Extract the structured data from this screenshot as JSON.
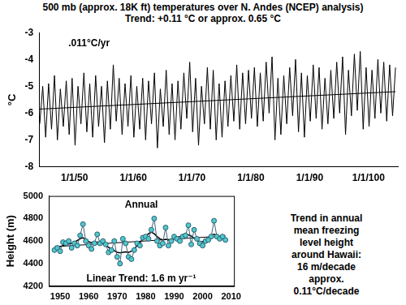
{
  "chart_data": [
    {
      "type": "line",
      "title": "500 mb (approx. 18K ft) temperatures over N. Andes (NCEP) analysis)",
      "subtitle": "Trend:  +0.11 °C or approx. 0.65 °C",
      "annotations": [
        ".011°C/yr"
      ],
      "y_label": "°C",
      "xlim": [
        1944,
        2005
      ],
      "xticks": [
        {
          "value": 1950,
          "label": "1/1/50"
        },
        {
          "value": 1960,
          "label": "1/1/60"
        },
        {
          "value": 1970,
          "label": "1/1/70"
        },
        {
          "value": 1980,
          "label": "1/1/80"
        },
        {
          "value": 1990,
          "label": "1/1/90"
        },
        {
          "value": 2000,
          "label": "1/1/100"
        }
      ],
      "ylim": [
        -8,
        -3
      ],
      "yticks": [
        -8,
        -7,
        -6,
        -5,
        -4,
        -3
      ],
      "grid": false,
      "series": [
        {
          "color": "#000000",
          "marker": "none",
          "line_style": "solid",
          "x": [
            1944.1,
            1944.6,
            1945.1,
            1945.6,
            1946.1,
            1946.6,
            1947.1,
            1947.6,
            1948.1,
            1948.6,
            1949.1,
            1949.6,
            1950.1,
            1950.6,
            1951.1,
            1951.6,
            1952.1,
            1952.6,
            1953.1,
            1953.6,
            1954.1,
            1954.6,
            1955.1,
            1955.6,
            1956.1,
            1956.6,
            1957.1,
            1957.6,
            1958.1,
            1958.6,
            1959.1,
            1959.6,
            1960.1,
            1960.6,
            1961.1,
            1961.6,
            1962.1,
            1962.6,
            1963.1,
            1963.6,
            1964.1,
            1964.6,
            1965.1,
            1965.6,
            1966.1,
            1966.6,
            1967.1,
            1967.6,
            1968.1,
            1968.6,
            1969.1,
            1969.6,
            1970.1,
            1970.6,
            1971.1,
            1971.6,
            1972.1,
            1972.6,
            1973.1,
            1973.6,
            1974.1,
            1974.6,
            1975.1,
            1975.6,
            1976.1,
            1976.6,
            1977.1,
            1977.6,
            1978.1,
            1978.6,
            1979.1,
            1979.6,
            1980.1,
            1980.6,
            1981.1,
            1981.6,
            1982.1,
            1982.6,
            1983.1,
            1983.6,
            1984.1,
            1984.6,
            1985.1,
            1985.6,
            1986.1,
            1986.6,
            1987.1,
            1987.6,
            1988.1,
            1988.6,
            1989.1,
            1989.6,
            1990.1,
            1990.6,
            1991.1,
            1991.6,
            1992.1,
            1992.6,
            1993.1,
            1993.6,
            1994.1,
            1994.6,
            1995.1,
            1995.6,
            1996.1,
            1996.6,
            1997.1,
            1997.6,
            1998.1,
            1998.6,
            1999.1,
            1999.6,
            2000.1,
            2000.6,
            2001.1,
            2001.6,
            2002.1,
            2002.6,
            2003.1,
            2003.6,
            2004.1,
            2004.6
          ],
          "values": [
            -6.4,
            -5.0,
            -6.9,
            -4.9,
            -6.6,
            -4.6,
            -7.0,
            -5.1,
            -6.5,
            -4.8,
            -6.8,
            -4.7,
            -7.2,
            -5.0,
            -6.4,
            -4.5,
            -6.7,
            -4.9,
            -6.9,
            -4.6,
            -6.5,
            -5.0,
            -7.1,
            -4.8,
            -6.6,
            -4.2,
            -6.3,
            -4.7,
            -6.8,
            -4.9,
            -6.5,
            -4.6,
            -6.9,
            -5.0,
            -6.6,
            -4.7,
            -7.0,
            -4.8,
            -6.4,
            -4.5,
            -7.3,
            -5.1,
            -6.5,
            -4.4,
            -6.8,
            -4.9,
            -7.0,
            -4.8,
            -6.6,
            -4.5,
            -6.2,
            -4.1,
            -6.7,
            -4.7,
            -7.2,
            -5.0,
            -6.4,
            -4.3,
            -6.6,
            -4.4,
            -7.0,
            -4.9,
            -6.9,
            -4.8,
            -6.5,
            -4.6,
            -6.3,
            -4.2,
            -6.6,
            -4.5,
            -6.4,
            -4.4,
            -6.2,
            -4.3,
            -6.5,
            -4.5,
            -6.3,
            -4.1,
            -6.0,
            -3.9,
            -7.0,
            -4.7,
            -6.8,
            -4.6,
            -6.4,
            -4.3,
            -6.1,
            -4.0,
            -6.7,
            -4.5,
            -6.9,
            -4.6,
            -6.3,
            -4.2,
            -6.2,
            -4.3,
            -6.6,
            -4.7,
            -6.4,
            -4.4,
            -6.2,
            -4.1,
            -6.0,
            -3.9,
            -6.8,
            -4.4,
            -6.1,
            -3.8,
            -5.9,
            -3.7,
            -6.6,
            -4.3,
            -6.5,
            -4.4,
            -6.2,
            -4.0,
            -6.0,
            -4.1,
            -6.3,
            -4.2,
            -6.1,
            -4.3
          ]
        },
        {
          "color": "#000000",
          "marker": "none",
          "line_style": "solid",
          "x": [
            1944.1,
            2004.6
          ],
          "values": [
            -5.85,
            -5.2
          ]
        }
      ]
    },
    {
      "type": "line",
      "title": "Annual",
      "annotations": [
        "Linear Trend:  1.6 m yr⁻¹"
      ],
      "side_text": [
        "Trend in annual",
        "mean freezing",
        "level height",
        "around Hawaii:",
        "16 m/decade",
        "approx.",
        "0.11°C/decade"
      ],
      "y_label": "Height (m)",
      "xlim": [
        1946,
        2011
      ],
      "xticks": [
        1950,
        1960,
        1970,
        1980,
        1990,
        2000,
        2010
      ],
      "ylim": [
        4200,
        5000
      ],
      "yticks": [
        4200,
        4400,
        4600,
        4800,
        5000
      ],
      "grid": false,
      "series": [
        {
          "color": "#4fc8cc",
          "marker": "circle",
          "line_style": "solid",
          "x": [
            1948,
            1949,
            1950,
            1951,
            1952,
            1953,
            1954,
            1955,
            1956,
            1957,
            1958,
            1959,
            1960,
            1961,
            1962,
            1963,
            1964,
            1965,
            1966,
            1967,
            1968,
            1969,
            1970,
            1971,
            1972,
            1973,
            1974,
            1975,
            1976,
            1977,
            1978,
            1979,
            1980,
            1981,
            1982,
            1983,
            1984,
            1985,
            1986,
            1987,
            1988,
            1989,
            1990,
            1991,
            1992,
            1993,
            1994,
            1995,
            1996,
            1997,
            1998,
            1999,
            2000,
            2001,
            2002,
            2003,
            2004,
            2005,
            2006,
            2007,
            2008
          ],
          "values": [
            4520,
            4540,
            4510,
            4590,
            4580,
            4600,
            4540,
            4580,
            4560,
            4650,
            4750,
            4600,
            4560,
            4530,
            4580,
            4660,
            4580,
            4600,
            4570,
            4500,
            4520,
            4600,
            4460,
            4400,
            4620,
            4580,
            4460,
            4440,
            4520,
            4580,
            4560,
            4630,
            4640,
            4620,
            4700,
            4800,
            4600,
            4560,
            4580,
            4720,
            4560,
            4600,
            4640,
            4620,
            4600,
            4640,
            4650,
            4740,
            4570,
            4700,
            4620,
            4580,
            4560,
            4600,
            4610,
            4640,
            4780,
            4640,
            4620,
            4640,
            4610
          ]
        },
        {
          "color": "#000000",
          "marker": "none",
          "line_style": "solid",
          "x": [
            1948,
            1949,
            1950,
            1951,
            1952,
            1953,
            1954,
            1955,
            1956,
            1957,
            1958,
            1959,
            1960,
            1961,
            1962,
            1963,
            1964,
            1965,
            1966,
            1967,
            1968,
            1969,
            1970,
            1971,
            1972,
            1973,
            1974,
            1975,
            1976,
            1977,
            1978,
            1979,
            1980,
            1981,
            1982,
            1983,
            1984,
            1985,
            1986,
            1987,
            1988,
            1989,
            1990,
            1991,
            1992,
            1993,
            1994,
            1995,
            1996,
            1997,
            1998,
            1999,
            2000,
            2001,
            2002,
            2003,
            2004,
            2005,
            2006,
            2007,
            2008
          ],
          "values": [
            4530,
            4540,
            4550,
            4560,
            4570,
            4575,
            4580,
            4590,
            4605,
            4620,
            4630,
            4615,
            4595,
            4585,
            4585,
            4590,
            4590,
            4575,
            4560,
            4545,
            4530,
            4515,
            4500,
            4495,
            4500,
            4505,
            4500,
            4510,
            4530,
            4560,
            4590,
            4615,
            4640,
            4665,
            4680,
            4665,
            4640,
            4620,
            4610,
            4615,
            4610,
            4610,
            4620,
            4630,
            4640,
            4650,
            4660,
            4655,
            4645,
            4625,
            4605,
            4595,
            4595,
            4610,
            4630,
            4650,
            4660,
            4650,
            4640,
            4630,
            4620
          ]
        },
        {
          "color": "#000000",
          "marker": "none",
          "line_style": "solid",
          "x": [
            1948,
            2008
          ],
          "values": [
            4550,
            4646
          ]
        }
      ]
    }
  ]
}
